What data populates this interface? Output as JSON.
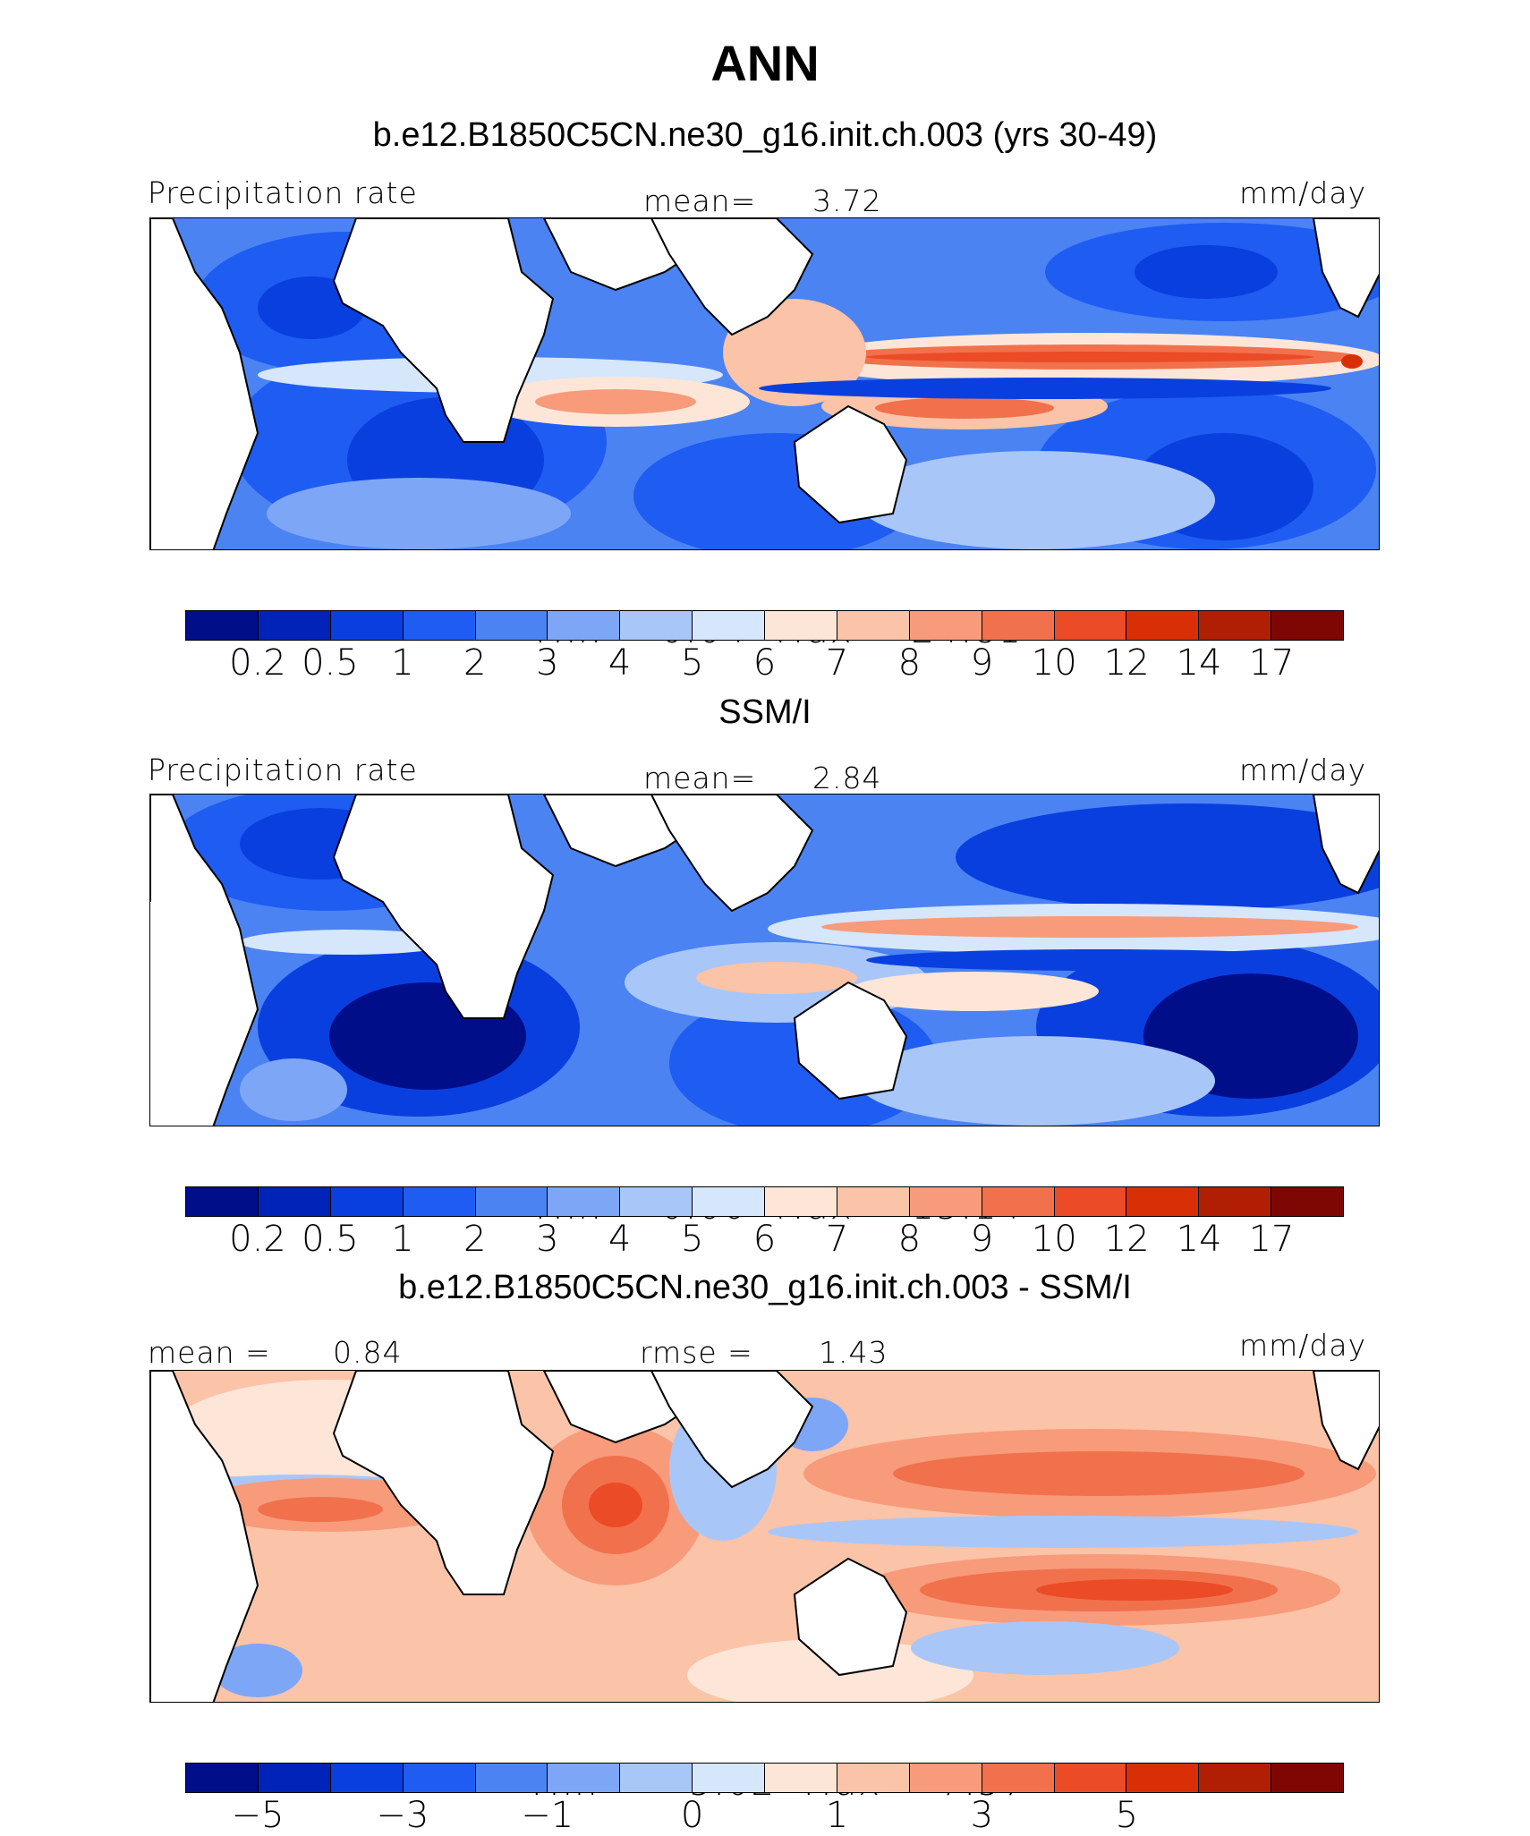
{
  "title": "ANN",
  "colors": {
    "scale": [
      "#000e8a",
      "#0223b8",
      "#0a3fdf",
      "#1f5cf2",
      "#4b83f3",
      "#7ea6f6",
      "#a9c6f9",
      "#d6e6fb",
      "#fde6d8",
      "#fbc3a8",
      "#f79b7b",
      "#f1714d",
      "#eb4b26",
      "#d92f07",
      "#b11e03",
      "#7e0703"
    ],
    "land": "#ffffff",
    "coast": "#000000"
  },
  "chart_data": [
    {
      "type": "heatmap",
      "title": "b.e12.B1850C5CN.ne30_g16.init.ch.003 (yrs 30-49)",
      "left_label": "Precipitation rate",
      "center_label": "mean=",
      "center_value": "3.72",
      "right_label": "mm/day",
      "min_label": "Min",
      "min": "0.04",
      "max_label": "Max",
      "max": "24.81",
      "levels": [
        "0.2",
        "0.5",
        "1",
        "2",
        "3",
        "4",
        "5",
        "6",
        "7",
        "8",
        "9",
        "10",
        "12",
        "14",
        "17"
      ]
    },
    {
      "type": "heatmap",
      "title": "SSM/I",
      "left_label": "Precipitation rate",
      "center_label": "mean=",
      "center_value": "2.84",
      "right_label": "mm/day",
      "min_label": "Min",
      "min": "0.00",
      "max_label": "Max",
      "max": "15.14",
      "levels": [
        "0.2",
        "0.5",
        "1",
        "2",
        "3",
        "4",
        "5",
        "6",
        "7",
        "8",
        "9",
        "10",
        "12",
        "14",
        "17"
      ]
    },
    {
      "type": "heatmap",
      "title": "b.e12.B1850C5CN.ne30_g16.init.ch.003 - SSM/I",
      "left_label": "mean =",
      "left_value": "0.84",
      "center_label": "rmse =",
      "center_value": "1.43",
      "right_label": "mm/day",
      "min_label": "Min",
      "min": "−5.02",
      "max_label": "Max",
      "max": "7.57",
      "tick_labels": [
        "−5",
        "−3",
        "−1",
        "0",
        "1",
        "3",
        "5"
      ]
    }
  ]
}
